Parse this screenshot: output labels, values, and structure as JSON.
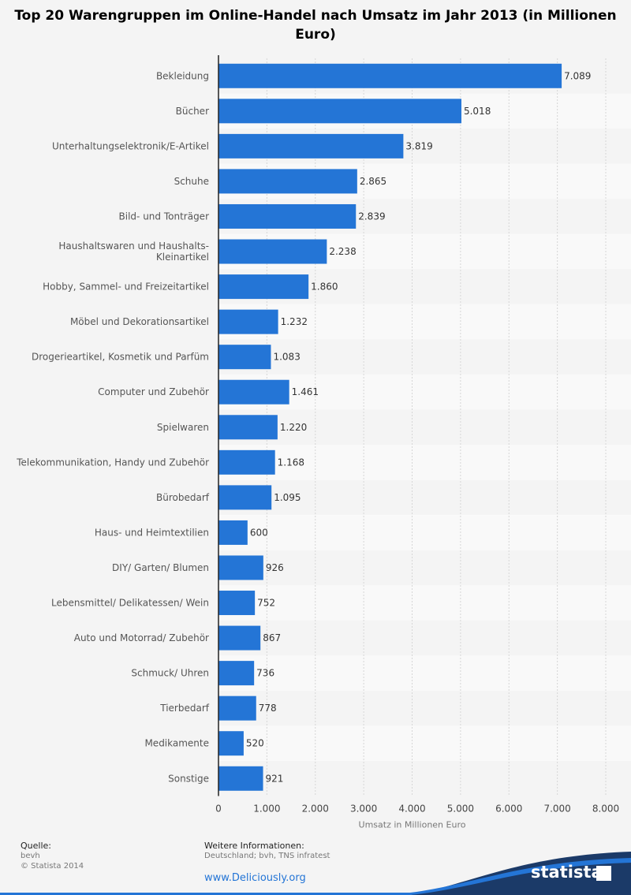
{
  "title": "Top 20 Warengruppen im Online-Handel nach Umsatz im Jahr 2013 (in Millionen Euro)",
  "chart_data": {
    "type": "bar",
    "orientation": "horizontal",
    "categories": [
      "Bekleidung",
      "Bücher",
      "Unterhaltungselektronik/E-Artikel",
      "Schuhe",
      "Bild- und Tonträger",
      "Haushaltswaren und Haushalts-\nKleinartikel",
      "Hobby, Sammel- und Freizeitartikel",
      "Möbel und Dekorationsartikel",
      "Drogerieartikel, Kosmetik und Parfüm",
      "Computer und Zubehör",
      "Spielwaren",
      "Telekommunikation, Handy und Zubehör",
      "Bürobedarf",
      "Haus- und Heimtextilien",
      "DIY/ Garten/ Blumen",
      "Lebensmittel/ Delikatessen/ Wein",
      "Auto und Motorrad/ Zubehör",
      "Schmuck/ Uhren",
      "Tierbedarf",
      "Medikamente",
      "Sonstige"
    ],
    "values": [
      7089,
      5018,
      3819,
      2865,
      2839,
      2238,
      1860,
      1232,
      1083,
      1461,
      1220,
      1168,
      1095,
      600,
      926,
      752,
      867,
      736,
      778,
      520,
      921
    ],
    "value_labels": [
      "7.089",
      "5.018",
      "3.819",
      "2.865",
      "2.839",
      "2.238",
      "1.860",
      "1.232",
      "1.083",
      "1.461",
      "1.220",
      "1.168",
      "1.095",
      "600",
      "926",
      "752",
      "867",
      "736",
      "778",
      "520",
      "921"
    ],
    "xlabel": "Umsatz in Millionen Euro",
    "xlim": [
      0,
      8000
    ],
    "xticks": [
      0,
      1000,
      2000,
      3000,
      4000,
      5000,
      6000,
      7000,
      8000
    ],
    "xtick_labels": [
      "0",
      "1.000",
      "2.000",
      "3.000",
      "4.000",
      "5.000",
      "6.000",
      "7.000",
      "8.000"
    ],
    "bar_color": "#2475d6",
    "grid": true
  },
  "footer": {
    "source_heading": "Quelle:",
    "source": "bevh",
    "copyright": "© Statista 2014",
    "info_heading": "Weitere Informationen:",
    "info": "Deutschland; bvh, TNS infratest",
    "link": "www.Deliciously.org",
    "brand": "statista"
  }
}
